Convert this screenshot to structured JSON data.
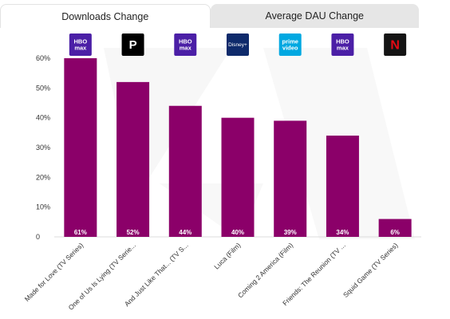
{
  "tabs": [
    {
      "label": "Downloads Change",
      "active": true
    },
    {
      "label": "Average DAU Change",
      "active": false
    }
  ],
  "chart_data": {
    "type": "bar",
    "title": "",
    "xlabel": "",
    "ylabel": "",
    "ylim": [
      0,
      60
    ],
    "y_ticks": [
      "0",
      "10%",
      "20%",
      "30%",
      "40%",
      "50%",
      "60%"
    ],
    "grid": false,
    "bar_color": "#8b0069",
    "categories": [
      "Made for Love (TV Series)",
      "One of Us Is Lying (TV Serie...",
      "And Just Like That... (TV S...",
      "Luca (Film)",
      "Coming 2 America (Film)",
      "Friends: The Reunion (TV ...",
      "Squid Game (TV Series)"
    ],
    "values": [
      61,
      52,
      44,
      40,
      39,
      34,
      6
    ],
    "data_labels": [
      "61%",
      "52%",
      "44%",
      "40%",
      "39%",
      "34%",
      "6%"
    ],
    "logos": [
      {
        "icon": "hbo-max-icon",
        "text": [
          "HBO",
          "max"
        ],
        "bg": "#4b1fa6"
      },
      {
        "icon": "peacock-icon",
        "text": [
          "P"
        ],
        "bg": "#000000"
      },
      {
        "icon": "hbo-max-icon",
        "text": [
          "HBO",
          "max"
        ],
        "bg": "#4b1fa6"
      },
      {
        "icon": "disney-plus-icon",
        "text": [
          "Disney+"
        ],
        "bg": "#0e2a6b"
      },
      {
        "icon": "prime-video-icon",
        "text": [
          "prime",
          "video"
        ],
        "bg": "#00a8e1"
      },
      {
        "icon": "hbo-max-icon",
        "text": [
          "HBO",
          "max"
        ],
        "bg": "#4b1fa6"
      },
      {
        "icon": "netflix-icon",
        "text": [
          "N"
        ],
        "bg": "#141414"
      }
    ]
  }
}
